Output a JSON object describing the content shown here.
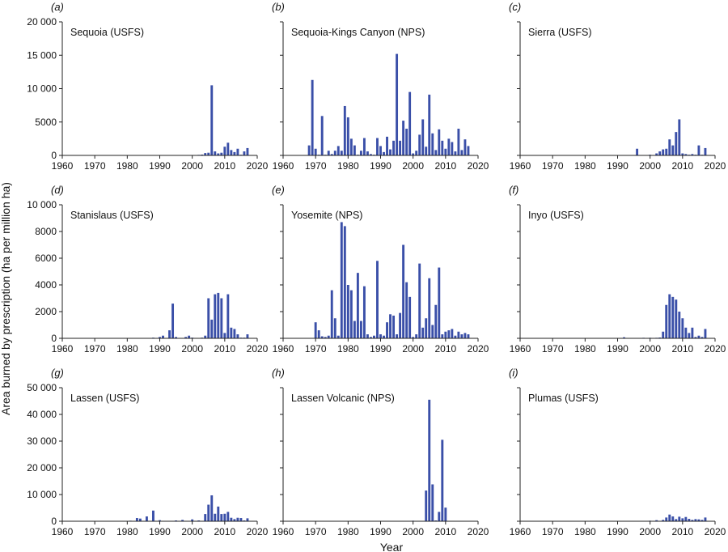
{
  "figure": {
    "ylabel": "Area burned by prescription (ha per million ha)",
    "xlabel": "Year"
  },
  "colors": {
    "bar": "#3a4fa8",
    "axis": "#222222"
  },
  "chart_data": [
    {
      "type": "bar",
      "panel_label": "(a)",
      "title": "Sequoia (USFS)",
      "xlim": [
        1960,
        2020
      ],
      "ylim": [
        0,
        20000
      ],
      "xticks": [
        1960,
        1970,
        1980,
        1990,
        2000,
        2010,
        2020
      ],
      "yticks": [
        0,
        5000,
        10000,
        15000,
        20000
      ],
      "ytick_labels": [
        "0",
        "5000",
        "10 000",
        "15 000",
        "20 000"
      ],
      "x": [
        1962,
        1965,
        1970,
        1975,
        1980,
        1985,
        1990,
        1995,
        1998,
        2000,
        2002,
        2003,
        2004,
        2005,
        2006,
        2007,
        2008,
        2009,
        2010,
        2011,
        2012,
        2013,
        2014,
        2015,
        2016,
        2017
      ],
      "values": [
        30,
        30,
        30,
        30,
        30,
        30,
        30,
        30,
        60,
        60,
        80,
        120,
        350,
        400,
        10500,
        600,
        300,
        400,
        1300,
        1900,
        800,
        500,
        1000,
        100,
        600,
        1100
      ]
    },
    {
      "type": "bar",
      "panel_label": "(b)",
      "title": "Sequoia-Kings Canyon (NPS)",
      "xlim": [
        1960,
        2020
      ],
      "ylim": [
        0,
        20000
      ],
      "xticks": [
        1960,
        1970,
        1980,
        1990,
        2000,
        2010,
        2020
      ],
      "yticks": [
        0,
        5000,
        10000,
        15000,
        20000
      ],
      "ytick_labels": [
        "0",
        "5000",
        "10 000",
        "15 000",
        "20 000"
      ],
      "x": [
        1968,
        1969,
        1970,
        1971,
        1972,
        1973,
        1974,
        1975,
        1976,
        1977,
        1978,
        1979,
        1980,
        1981,
        1982,
        1983,
        1984,
        1985,
        1986,
        1987,
        1988,
        1989,
        1990,
        1991,
        1992,
        1993,
        1994,
        1995,
        1996,
        1997,
        1998,
        1999,
        2000,
        2001,
        2002,
        2003,
        2004,
        2005,
        2006,
        2007,
        2008,
        2009,
        2010,
        2011,
        2012,
        2013,
        2014,
        2015,
        2016,
        2017
      ],
      "values": [
        1500,
        11300,
        1000,
        100,
        5900,
        100,
        700,
        200,
        700,
        1400,
        700,
        7400,
        5700,
        2500,
        1500,
        100,
        700,
        2600,
        600,
        200,
        100,
        2600,
        1400,
        500,
        2800,
        900,
        2200,
        15200,
        2200,
        5200,
        4000,
        9500,
        300,
        700,
        3100,
        5400,
        1300,
        9100,
        3300,
        800,
        3900,
        2200,
        1000,
        2500,
        2000,
        600,
        4000,
        800,
        2400,
        1400
      ]
    },
    {
      "type": "bar",
      "panel_label": "(c)",
      "title": "Sierra (USFS)",
      "xlim": [
        1960,
        2020
      ],
      "ylim": [
        0,
        20000
      ],
      "xticks": [
        1960,
        1970,
        1980,
        1990,
        2000,
        2010,
        2020
      ],
      "yticks": [
        0,
        5000,
        10000,
        15000,
        20000
      ],
      "ytick_labels": [
        "0",
        "5000",
        "10 000",
        "15 000",
        "20 000"
      ],
      "x": [
        1965,
        1970,
        1975,
        1980,
        1985,
        1990,
        1996,
        2000,
        2002,
        2003,
        2004,
        2005,
        2006,
        2007,
        2008,
        2009,
        2010,
        2011,
        2012,
        2013,
        2014,
        2015,
        2016,
        2017
      ],
      "values": [
        30,
        30,
        30,
        30,
        30,
        30,
        1000,
        100,
        300,
        600,
        900,
        1000,
        2400,
        1500,
        3500,
        5400,
        300,
        200,
        100,
        200,
        100,
        1500,
        100,
        1100
      ]
    },
    {
      "type": "bar",
      "panel_label": "(d)",
      "title": "Stanislaus (USFS)",
      "xlim": [
        1960,
        2020
      ],
      "ylim": [
        0,
        10000
      ],
      "xticks": [
        1960,
        1970,
        1980,
        1990,
        2000,
        2010,
        2020
      ],
      "yticks": [
        0,
        2000,
        4000,
        6000,
        8000,
        10000
      ],
      "ytick_labels": [
        "0",
        "2000",
        "4000",
        "6000",
        "8000",
        "10 000"
      ],
      "x": [
        1965,
        1970,
        1975,
        1980,
        1985,
        1988,
        1990,
        1991,
        1993,
        1994,
        1995,
        1998,
        1999,
        2000,
        2003,
        2004,
        2005,
        2006,
        2007,
        2008,
        2009,
        2010,
        2011,
        2012,
        2013,
        2014,
        2015,
        2016,
        2017
      ],
      "values": [
        20,
        20,
        20,
        20,
        20,
        50,
        100,
        200,
        600,
        2600,
        100,
        100,
        200,
        50,
        50,
        200,
        3000,
        1400,
        3300,
        3400,
        3000,
        400,
        3300,
        800,
        700,
        300,
        50,
        50,
        300
      ]
    },
    {
      "type": "bar",
      "panel_label": "(e)",
      "title": "Yosemite (NPS)",
      "xlim": [
        1960,
        2020
      ],
      "ylim": [
        0,
        10000
      ],
      "xticks": [
        1960,
        1970,
        1980,
        1990,
        2000,
        2010,
        2020
      ],
      "yticks": [
        0,
        2000,
        4000,
        6000,
        8000,
        10000
      ],
      "ytick_labels": [
        "0",
        "2000",
        "4000",
        "6000",
        "8000",
        "10 000"
      ],
      "x": [
        1965,
        1970,
        1971,
        1972,
        1973,
        1974,
        1975,
        1976,
        1977,
        1978,
        1979,
        1980,
        1981,
        1982,
        1983,
        1984,
        1985,
        1986,
        1987,
        1988,
        1989,
        1990,
        1991,
        1992,
        1993,
        1994,
        1995,
        1996,
        1997,
        1998,
        1999,
        2000,
        2001,
        2002,
        2003,
        2004,
        2005,
        2006,
        2007,
        2008,
        2009,
        2010,
        2011,
        2012,
        2013,
        2014,
        2015,
        2016,
        2017
      ],
      "values": [
        30,
        1200,
        600,
        150,
        100,
        200,
        3600,
        1500,
        200,
        8700,
        8400,
        4000,
        3600,
        1300,
        4900,
        1300,
        3900,
        300,
        100,
        200,
        5800,
        300,
        200,
        1200,
        1800,
        1700,
        300,
        1900,
        7000,
        4200,
        3100,
        100,
        300,
        5600,
        800,
        1500,
        4500,
        1000,
        2500,
        5300,
        300,
        500,
        600,
        700,
        200,
        500,
        300,
        400,
        300
      ]
    },
    {
      "type": "bar",
      "panel_label": "(f)",
      "title": "Inyo (USFS)",
      "xlim": [
        1960,
        2020
      ],
      "ylim": [
        0,
        10000
      ],
      "xticks": [
        1960,
        1970,
        1980,
        1990,
        2000,
        2010,
        2020
      ],
      "yticks": [
        0,
        2000,
        4000,
        6000,
        8000,
        10000
      ],
      "ytick_labels": [
        "0",
        "2000",
        "4000",
        "6000",
        "8000",
        "10 000"
      ],
      "x": [
        1965,
        1970,
        1975,
        1980,
        1985,
        1992,
        1998,
        2000,
        2002,
        2003,
        2004,
        2005,
        2006,
        2007,
        2008,
        2009,
        2010,
        2011,
        2012,
        2013,
        2014,
        2015,
        2016,
        2017
      ],
      "values": [
        20,
        20,
        20,
        20,
        20,
        80,
        40,
        40,
        40,
        60,
        500,
        2500,
        3300,
        3100,
        2900,
        2000,
        1500,
        800,
        400,
        800,
        100,
        200,
        100,
        700
      ]
    },
    {
      "type": "bar",
      "panel_label": "(g)",
      "title": "Lassen (USFS)",
      "xlim": [
        1960,
        2020
      ],
      "ylim": [
        0,
        50000
      ],
      "xticks": [
        1960,
        1970,
        1980,
        1990,
        2000,
        2010,
        2020
      ],
      "yticks": [
        0,
        10000,
        20000,
        30000,
        40000,
        50000
      ],
      "ytick_labels": [
        "0",
        "10 000",
        "20 000",
        "30 000",
        "40 000",
        "50 000"
      ],
      "x": [
        1965,
        1970,
        1975,
        1980,
        1981,
        1983,
        1984,
        1986,
        1988,
        1990,
        1995,
        1997,
        2000,
        2002,
        2004,
        2005,
        2006,
        2007,
        2008,
        2009,
        2010,
        2011,
        2012,
        2013,
        2014,
        2015,
        2016,
        2017
      ],
      "values": [
        100,
        100,
        100,
        100,
        200,
        1200,
        1000,
        1800,
        4000,
        400,
        300,
        500,
        700,
        300,
        2700,
        6200,
        9700,
        2800,
        5500,
        2700,
        2800,
        3500,
        1300,
        800,
        1300,
        1200,
        300,
        1100
      ]
    },
    {
      "type": "bar",
      "panel_label": "(h)",
      "title": "Lassen Volcanic (NPS)",
      "xlim": [
        1960,
        2020
      ],
      "ylim": [
        0,
        50000
      ],
      "xticks": [
        1960,
        1970,
        1980,
        1990,
        2000,
        2010,
        2020
      ],
      "yticks": [
        0,
        10000,
        20000,
        30000,
        40000,
        50000
      ],
      "ytick_labels": [
        "0",
        "10 000",
        "20 000",
        "30 000",
        "40 000",
        "50 000"
      ],
      "x": [
        1970,
        1980,
        1990,
        1995,
        2000,
        2004,
        2005,
        2006,
        2007,
        2008,
        2009,
        2010
      ],
      "values": [
        100,
        100,
        100,
        100,
        200,
        11500,
        45500,
        13800,
        300,
        3500,
        30500,
        5100
      ]
    },
    {
      "type": "bar",
      "panel_label": "(i)",
      "title": "Plumas (USFS)",
      "xlim": [
        1960,
        2020
      ],
      "ylim": [
        0,
        50000
      ],
      "xticks": [
        1960,
        1970,
        1980,
        1990,
        2000,
        2010,
        2020
      ],
      "yticks": [
        0,
        10000,
        20000,
        30000,
        40000,
        50000
      ],
      "ytick_labels": [
        "0",
        "10 000",
        "20 000",
        "30 000",
        "40 000",
        "50 000"
      ],
      "x": [
        1965,
        1970,
        1975,
        1980,
        1985,
        1990,
        1995,
        2000,
        2002,
        2004,
        2005,
        2006,
        2007,
        2008,
        2009,
        2010,
        2011,
        2012,
        2013,
        2014,
        2015,
        2016,
        2017
      ],
      "values": [
        100,
        100,
        100,
        100,
        100,
        100,
        100,
        200,
        400,
        500,
        1400,
        2500,
        1800,
        800,
        1700,
        1100,
        1600,
        900,
        500,
        800,
        700,
        500,
        1400
      ]
    }
  ]
}
